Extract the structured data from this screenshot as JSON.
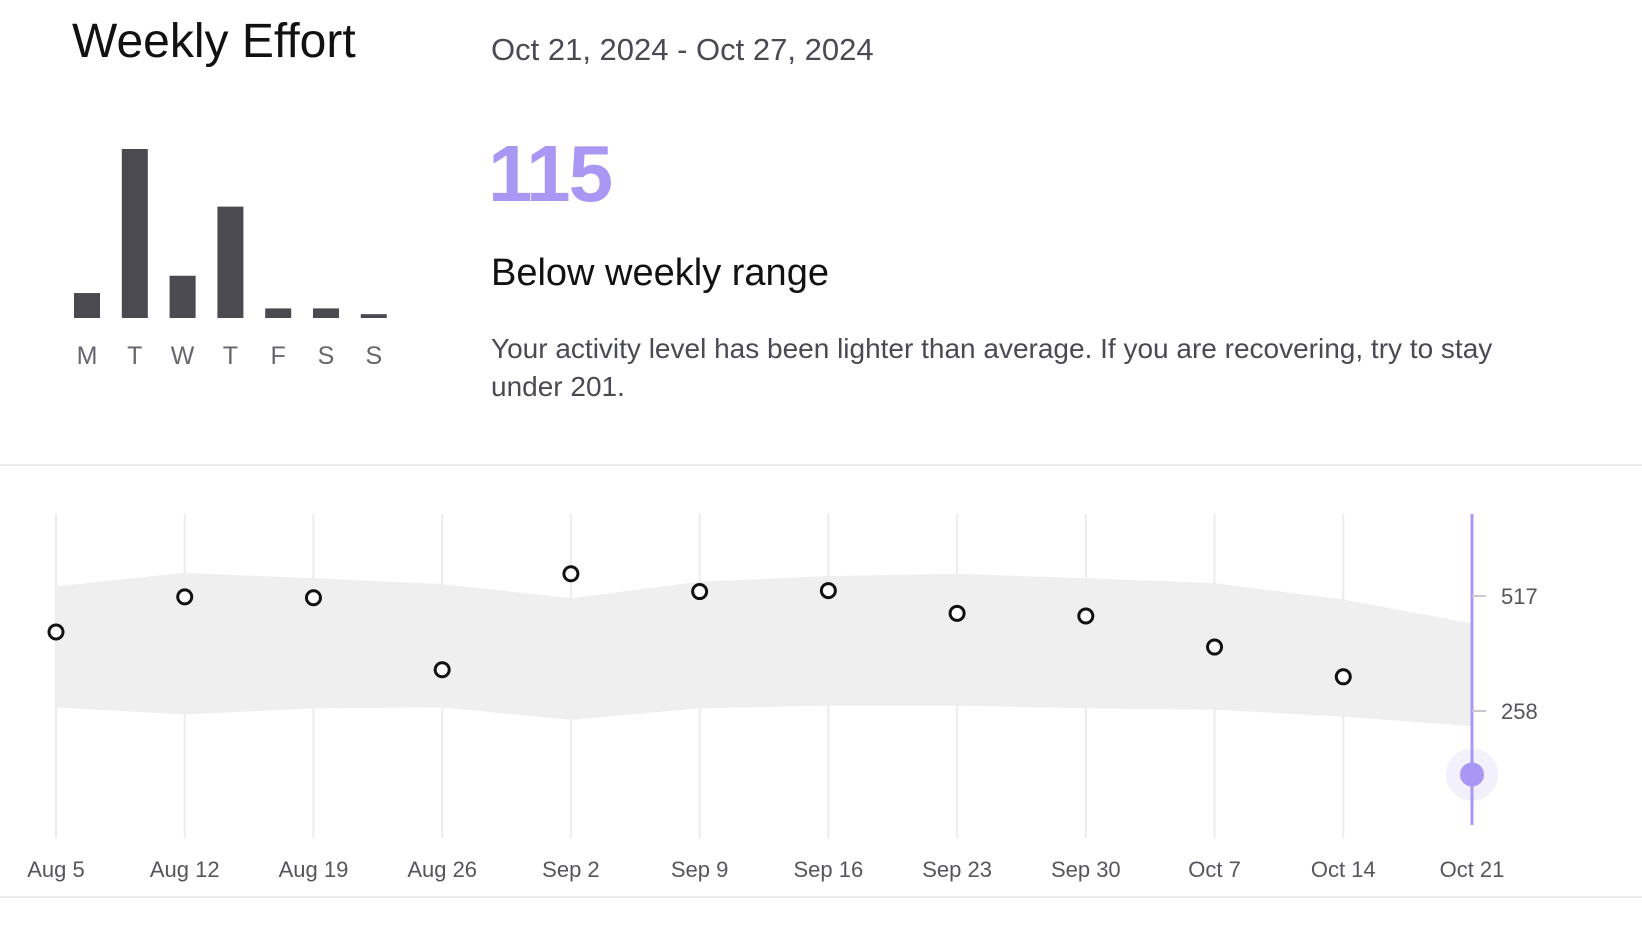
{
  "header": {
    "title": "Weekly Effort",
    "date_range": "Oct 21, 2024 - Oct 27, 2024"
  },
  "summary": {
    "score": "115",
    "status": "Below weekly range",
    "description": "Your activity level has been lighter than average. If you are recovering, try to stay under 201."
  },
  "colors": {
    "accent": "#a898f4",
    "bar": "#4a4a50",
    "band": "#efefef",
    "grid": "#ececec",
    "point_stroke": "#111111"
  },
  "chart_data": [
    {
      "type": "bar",
      "categories": [
        "M",
        "T",
        "W",
        "T",
        "F",
        "S",
        "S"
      ],
      "values": [
        13,
        88,
        22,
        58,
        5,
        5,
        2
      ],
      "ylim": [
        0,
        88
      ],
      "title": "",
      "xlabel": "",
      "ylabel": ""
    },
    {
      "type": "scatter",
      "categories": [
        "Aug 5",
        "Aug 12",
        "Aug 19",
        "Aug 26",
        "Sep 2",
        "Sep 9",
        "Sep 16",
        "Sep 23",
        "Sep 30",
        "Oct 7",
        "Oct 14",
        "Oct 21"
      ],
      "values": [
        436,
        515,
        513,
        351,
        567,
        527,
        529,
        478,
        472,
        402,
        335,
        115
      ],
      "band": {
        "upper": [
          539,
          569,
          557,
          544,
          512,
          549,
          562,
          567,
          557,
          546,
          509,
          455
        ],
        "lower": [
          266,
          250,
          264,
          266,
          238,
          264,
          270,
          270,
          264,
          261,
          245,
          224
        ]
      },
      "highlight_index": 11,
      "y_ticks": [
        517,
        258
      ],
      "ylim": [
        83,
        685
      ],
      "title": "",
      "xlabel": "",
      "ylabel": ""
    }
  ]
}
